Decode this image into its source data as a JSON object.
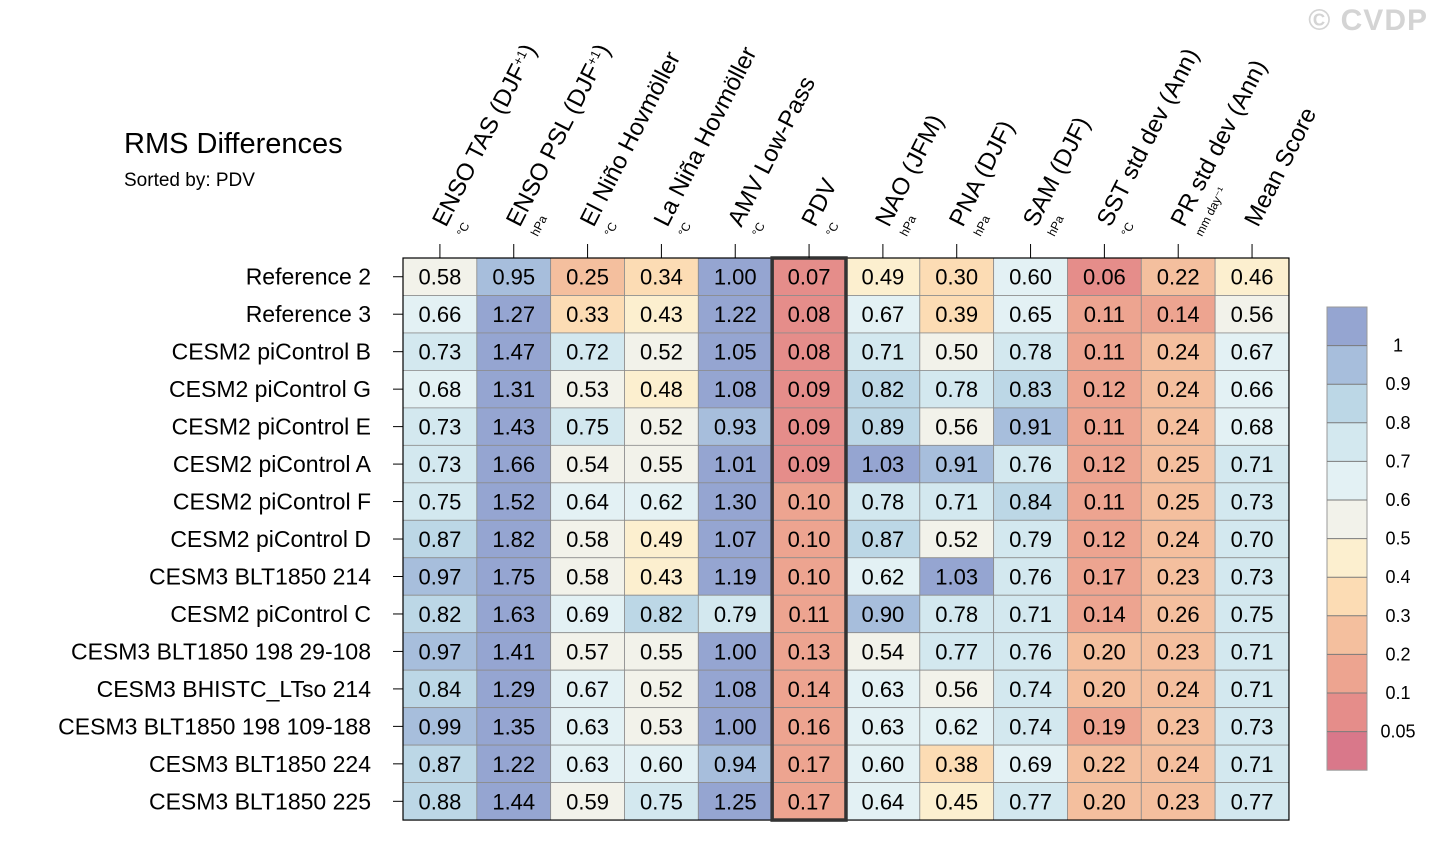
{
  "watermark": "© CVDP",
  "chart_data": {
    "type": "heatmap",
    "title": "RMS Differences",
    "subtitle": "Sorted by: PDV",
    "highlight_column": "PDV",
    "columns": [
      {
        "label": "ENSO TAS (DJF",
        "sup": "+1",
        "close": ")",
        "unit": "°C"
      },
      {
        "label": "ENSO PSL (DJF",
        "sup": "+1",
        "close": ")",
        "unit": "hPa"
      },
      {
        "label": "El Niño Hovmöller",
        "sup": "",
        "close": "",
        "unit": "°C"
      },
      {
        "label": "La Niña Hovmöller",
        "sup": "",
        "close": "",
        "unit": "°C"
      },
      {
        "label": "AMV Low-Pass",
        "sup": "",
        "close": "",
        "unit": "°C"
      },
      {
        "label": "PDV",
        "sup": "",
        "close": "",
        "unit": "°C"
      },
      {
        "label": "NAO (JFM)",
        "sup": "",
        "close": "",
        "unit": "hPa"
      },
      {
        "label": "PNA (DJF)",
        "sup": "",
        "close": "",
        "unit": "hPa"
      },
      {
        "label": "SAM (DJF)",
        "sup": "",
        "close": "",
        "unit": "hPa"
      },
      {
        "label": "SST std dev (Ann)",
        "sup": "",
        "close": "",
        "unit": "°C"
      },
      {
        "label": "PR std dev (Ann)",
        "sup": "",
        "close": "",
        "unit": "mm day⁻¹"
      },
      {
        "label": "Mean Score",
        "sup": "",
        "close": "",
        "unit": ""
      }
    ],
    "rows": [
      "Reference 2",
      "Reference 3",
      "CESM2 piControl B",
      "CESM2 piControl G",
      "CESM2 piControl E",
      "CESM2 piControl A",
      "CESM2 piControl F",
      "CESM2 piControl D",
      "CESM3 BLT1850 214",
      "CESM2 piControl C",
      "CESM3 BLT1850 198 29-108",
      "CESM3 BHISTC_LTso 214",
      "CESM3 BLT1850 198 109-188",
      "CESM3 BLT1850 224",
      "CESM3 BLT1850 225"
    ],
    "values": [
      [
        "0.58",
        "0.95",
        "0.25",
        "0.34",
        "1.00",
        "0.07",
        "0.49",
        "0.30",
        "0.60",
        "0.06",
        "0.22",
        "0.46"
      ],
      [
        "0.66",
        "1.27",
        "0.33",
        "0.43",
        "1.22",
        "0.08",
        "0.67",
        "0.39",
        "0.65",
        "0.11",
        "0.14",
        "0.56"
      ],
      [
        "0.73",
        "1.47",
        "0.72",
        "0.52",
        "1.05",
        "0.08",
        "0.71",
        "0.50",
        "0.78",
        "0.11",
        "0.24",
        "0.67"
      ],
      [
        "0.68",
        "1.31",
        "0.53",
        "0.48",
        "1.08",
        "0.09",
        "0.82",
        "0.78",
        "0.83",
        "0.12",
        "0.24",
        "0.66"
      ],
      [
        "0.73",
        "1.43",
        "0.75",
        "0.52",
        "0.93",
        "0.09",
        "0.89",
        "0.56",
        "0.91",
        "0.11",
        "0.24",
        "0.68"
      ],
      [
        "0.73",
        "1.66",
        "0.54",
        "0.55",
        "1.01",
        "0.09",
        "1.03",
        "0.91",
        "0.76",
        "0.12",
        "0.25",
        "0.71"
      ],
      [
        "0.75",
        "1.52",
        "0.64",
        "0.62",
        "1.30",
        "0.10",
        "0.78",
        "0.71",
        "0.84",
        "0.11",
        "0.25",
        "0.73"
      ],
      [
        "0.87",
        "1.82",
        "0.58",
        "0.49",
        "1.07",
        "0.10",
        "0.87",
        "0.52",
        "0.79",
        "0.12",
        "0.24",
        "0.70"
      ],
      [
        "0.97",
        "1.75",
        "0.58",
        "0.43",
        "1.19",
        "0.10",
        "0.62",
        "1.03",
        "0.76",
        "0.17",
        "0.23",
        "0.73"
      ],
      [
        "0.82",
        "1.63",
        "0.69",
        "0.82",
        "0.79",
        "0.11",
        "0.90",
        "0.78",
        "0.71",
        "0.14",
        "0.26",
        "0.75"
      ],
      [
        "0.97",
        "1.41",
        "0.57",
        "0.55",
        "1.00",
        "0.13",
        "0.54",
        "0.77",
        "0.76",
        "0.20",
        "0.23",
        "0.71"
      ],
      [
        "0.84",
        "1.29",
        "0.67",
        "0.52",
        "1.08",
        "0.14",
        "0.63",
        "0.56",
        "0.74",
        "0.20",
        "0.24",
        "0.71"
      ],
      [
        "0.99",
        "1.35",
        "0.63",
        "0.53",
        "1.00",
        "0.16",
        "0.63",
        "0.62",
        "0.74",
        "0.19",
        "0.23",
        "0.73"
      ],
      [
        "0.87",
        "1.22",
        "0.63",
        "0.60",
        "0.94",
        "0.17",
        "0.60",
        "0.38",
        "0.69",
        "0.22",
        "0.24",
        "0.71"
      ],
      [
        "0.88",
        "1.44",
        "0.59",
        "0.75",
        "1.25",
        "0.17",
        "0.64",
        "0.45",
        "0.77",
        "0.20",
        "0.23",
        "0.77"
      ]
    ],
    "colorbar": {
      "tick_labels": [
        "1",
        "0.9",
        "0.8",
        "0.7",
        "0.6",
        "0.5",
        "0.4",
        "0.3",
        "0.2",
        "0.1",
        "0.05"
      ],
      "bin_colors": [
        "#95a5d1",
        "#a7bedc",
        "#bcd7e6",
        "#d3e8ef",
        "#e3f1f4",
        "#f2f2ea",
        "#fcefcf",
        "#fcdcb4",
        "#f4bf9e",
        "#eda490",
        "#e58d8a",
        "#d9788a"
      ]
    }
  }
}
